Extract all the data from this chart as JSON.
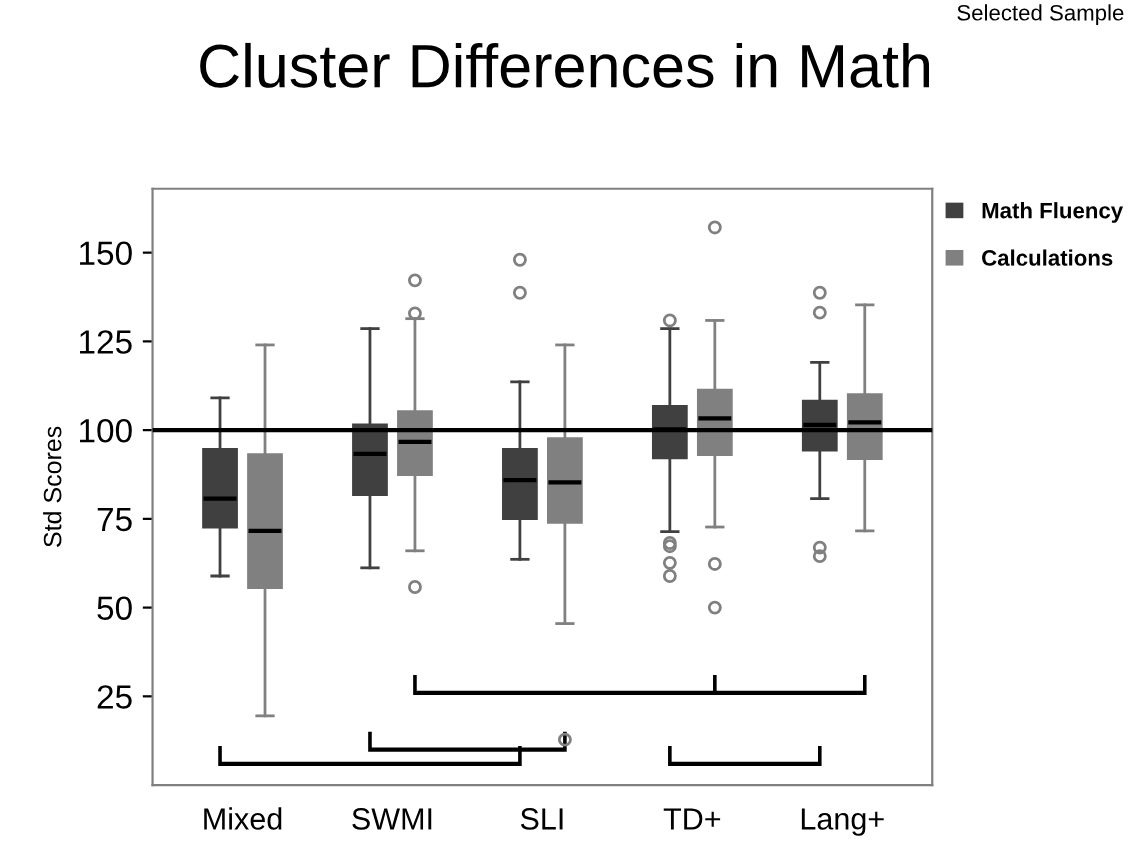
{
  "chart_data": {
    "type": "box",
    "title": "Cluster Differences in Math",
    "ylabel": "Std Scores",
    "categories": [
      "Mixed",
      "SWMI",
      "SLI",
      "TD+",
      "Lang+"
    ],
    "ylim": [
      0,
      168
    ],
    "yticks": [
      25,
      50,
      75,
      100,
      125,
      150
    ],
    "grid": false,
    "legend": "right",
    "ref_lines": [
      {
        "axis": "y",
        "value": 100,
        "color": "#000000"
      }
    ],
    "annotations": [
      "Selected Sample"
    ],
    "series": [
      {
        "name": "Math Fluency",
        "color": "#404040",
        "boxes": [
          {
            "low": 58.9,
            "q1": 72.7,
            "median": 80.7,
            "q3": 94.6,
            "high": 109.1
          },
          {
            "low": 61.2,
            "q1": 81.8,
            "median": 93.3,
            "q3": 101.5,
            "high": 128.6
          },
          {
            "low": 63.6,
            "q1": 75.1,
            "median": 85.9,
            "q3": 94.6,
            "high": 113.6,
            "outliers": [
              148.0,
              138.7
            ]
          },
          {
            "low": 71.4,
            "q1": 92.2,
            "median": 100.2,
            "q3": 106.7,
            "high": 128.6,
            "outliers": [
              130.9,
              68.2,
              67.3,
              62.6,
              58.9
            ]
          },
          {
            "low": 80.7,
            "q1": 94.4,
            "median": 101.5,
            "q3": 108.2,
            "high": 119.1,
            "outliers": [
              138.7,
              133.1,
              66.9,
              64.5
            ]
          }
        ]
      },
      {
        "name": "Calculations",
        "color": "#808080",
        "boxes": [
          {
            "low": 19.5,
            "q1": 55.6,
            "median": 71.6,
            "q3": 93.1,
            "high": 124.0
          },
          {
            "low": 66.0,
            "q1": 87.5,
            "median": 96.7,
            "q3": 105.2,
            "high": 131.4,
            "outliers": [
              142.2,
              132.9,
              55.8
            ]
          },
          {
            "low": 45.5,
            "q1": 74.0,
            "median": 85.3,
            "q3": 97.6,
            "high": 124.0,
            "outliers": [
              12.8
            ]
          },
          {
            "low": 72.7,
            "q1": 93.1,
            "median": 103.3,
            "q3": 111.3,
            "high": 130.9,
            "outliers": [
              157.1,
              62.3,
              50.0
            ]
          },
          {
            "low": 71.6,
            "q1": 92.0,
            "median": 102.2,
            "q3": 110.0,
            "high": 135.3
          }
        ]
      }
    ]
  }
}
